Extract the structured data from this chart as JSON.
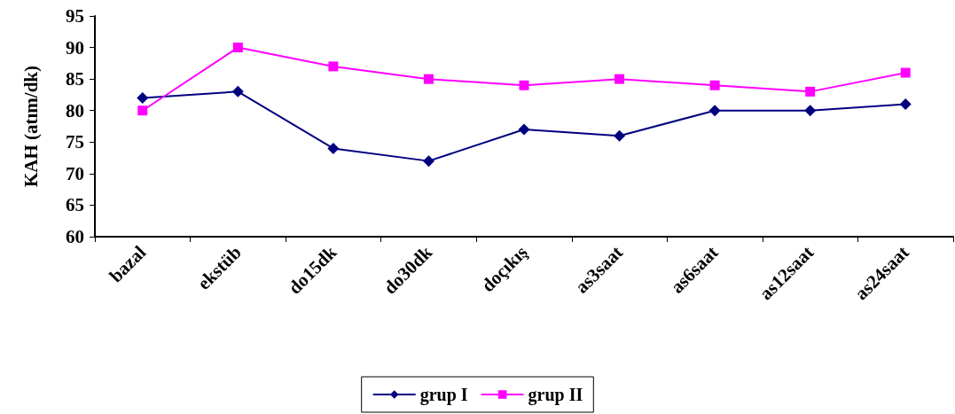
{
  "chart_data": {
    "type": "line",
    "ylabel": "KAH (atım/dk)",
    "categories": [
      "bazal",
      "ekstüb",
      "do15dk",
      "do30dk",
      "doçıkış",
      "as3saat",
      "as6saat",
      "as12saat",
      "as24saat"
    ],
    "series": [
      {
        "name": "grup I",
        "color": "#000080",
        "marker": "diamond",
        "values": [
          82,
          83,
          74,
          72,
          77,
          76,
          80,
          80,
          81
        ]
      },
      {
        "name": "grup II",
        "color": "#ff00ff",
        "marker": "square",
        "values": [
          80,
          90,
          87,
          85,
          84,
          85,
          84,
          83,
          86
        ]
      }
    ],
    "ylim": [
      60,
      95
    ],
    "yticks": [
      60,
      65,
      70,
      75,
      80,
      85,
      90,
      95
    ],
    "grid": false,
    "legend": "bottom"
  }
}
